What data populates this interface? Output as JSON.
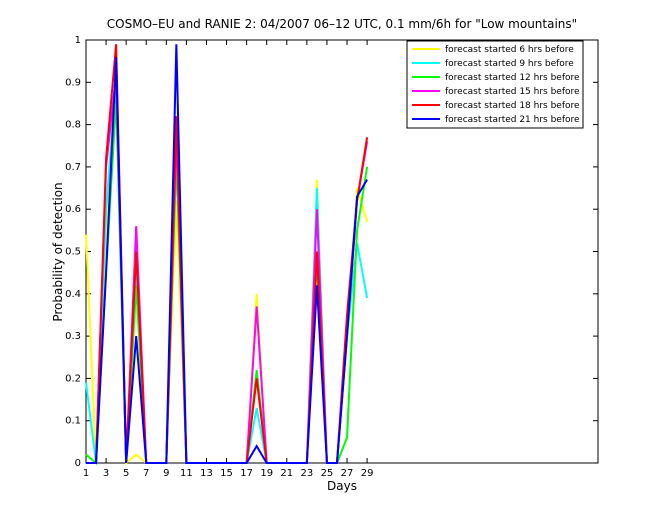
{
  "chart_data": {
    "type": "line",
    "title": "COSMO–EU and RANIE 2: 04/2007 06–12 UTC, 0.1 mm/6h for \"Low mountains\"",
    "x_label": "Days",
    "y_label": "Probability of detection",
    "x": [
      1,
      2,
      3,
      4,
      5,
      6,
      7,
      8,
      9,
      10,
      11,
      12,
      13,
      14,
      15,
      16,
      17,
      18,
      19,
      20,
      21,
      22,
      23,
      24,
      25,
      26,
      27,
      28,
      29
    ],
    "xlim": [
      1,
      52
    ],
    "xticks": [
      1,
      3,
      5,
      7,
      9,
      11,
      13,
      15,
      17,
      19,
      21,
      23,
      25,
      27,
      29
    ],
    "ylim": [
      0,
      1
    ],
    "yticks": [
      0,
      0.1,
      0.2,
      0.3,
      0.4,
      0.5,
      0.6,
      0.7,
      0.8,
      0.9,
      1
    ],
    "legend": "upper right",
    "series": [
      {
        "name": "forecast started 6 hrs before",
        "color": "#ffff00",
        "values": [
          0.54,
          0,
          0.55,
          0.93,
          0,
          0.02,
          0,
          0,
          0,
          0.62,
          0,
          0,
          0,
          0,
          0,
          0,
          0,
          0.4,
          0,
          0,
          0,
          0,
          0,
          0.67,
          0,
          0,
          0.3,
          0.65,
          0.57
        ]
      },
      {
        "name": "forecast started 9 hrs before",
        "color": "#00ffff",
        "values": [
          0.19,
          0,
          0.6,
          0.9,
          0,
          0.45,
          0,
          0,
          0,
          0.75,
          0,
          0,
          0,
          0,
          0,
          0,
          0,
          0.13,
          0,
          0,
          0,
          0,
          0,
          0.65,
          0,
          0,
          0.3,
          0.52,
          0.39
        ]
      },
      {
        "name": "forecast started 12 hrs before",
        "color": "#00ff00",
        "values": [
          0.02,
          0,
          0.45,
          0.86,
          0,
          0.42,
          0,
          0,
          0,
          0.72,
          0,
          0,
          0,
          0,
          0,
          0,
          0,
          0.22,
          0,
          0,
          0,
          0,
          0,
          0.48,
          0,
          0,
          0.06,
          0.55,
          0.7
        ]
      },
      {
        "name": "forecast started 15 hrs before",
        "color": "#ff00ff",
        "values": [
          0,
          0,
          0.7,
          0.92,
          0,
          0.56,
          0,
          0,
          0,
          0.78,
          0,
          0,
          0,
          0,
          0,
          0,
          0,
          0.37,
          0,
          0,
          0,
          0,
          0,
          0.6,
          0,
          0,
          0.3,
          0.62,
          0.76
        ]
      },
      {
        "name": "forecast started 18 hrs before",
        "color": "#ff0000",
        "values": [
          0,
          0,
          0.72,
          0.99,
          0,
          0.5,
          0,
          0,
          0,
          0.82,
          0,
          0,
          0,
          0,
          0,
          0,
          0,
          0.2,
          0,
          0,
          0,
          0,
          0,
          0.5,
          0,
          0,
          0.35,
          0.62,
          0.77
        ]
      },
      {
        "name": "forecast started 21 hrs before",
        "color": "#0000ff",
        "values": [
          0,
          0,
          0.45,
          0.96,
          0,
          0.3,
          0,
          0,
          0,
          0.99,
          0,
          0,
          0,
          0,
          0,
          0,
          0,
          0.04,
          0,
          0,
          0,
          0,
          0,
          0.42,
          0,
          0,
          0.3,
          0.63,
          0.67
        ]
      }
    ]
  }
}
